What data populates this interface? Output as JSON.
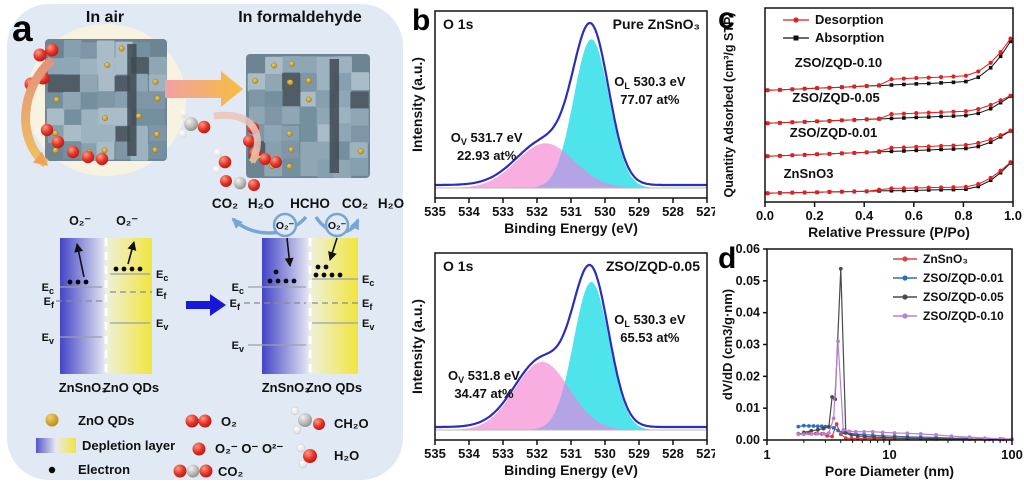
{
  "panels": {
    "a": "a",
    "b": "b",
    "c": "c",
    "d": "d"
  },
  "panel_a": {
    "scene_titles": {
      "air": "In air",
      "formaldehyde": "In formaldehyde"
    },
    "reaction_tokens": [
      "CO₂",
      "H₂O",
      "HCHO",
      "CO₂",
      "H₂O"
    ],
    "arc_labels": [
      "O₂⁻",
      "O₂⁻"
    ],
    "superoxide_labels": [
      "O₂⁻",
      "O₂⁻"
    ],
    "energy": {
      "base": "E",
      "c": "c",
      "f": "f",
      "v": "v"
    },
    "band_left": {
      "materials": [
        "ZnSnO₃",
        "ZnO QDs"
      ]
    },
    "band_right": {
      "materials": [
        "ZnSnO₃",
        "ZnO QDs"
      ]
    },
    "legend": [
      {
        "marker": "zno-qd",
        "label": "ZnO QDs"
      },
      {
        "marker": "depletion-layer",
        "label": "Depletion layer"
      },
      {
        "marker": "electron",
        "label": "Electron"
      },
      {
        "marker": "o2-molecule",
        "label": "O₂"
      },
      {
        "marker": "oxygen-ions",
        "label": "O₂⁻ O⁻ O²⁻"
      },
      {
        "marker": "co2-molecule",
        "label": "CO₂"
      },
      {
        "marker": "ch2o-molecule",
        "label": "CH₂O"
      },
      {
        "marker": "h2o-molecule",
        "label": "H₂O"
      }
    ],
    "colors": {
      "panel_bg": "#e1eaf4",
      "oxygen_red": "#d42a1e",
      "zno_gold": "#c99b2d",
      "depletion_blue": "#4444c8",
      "depletion_yellow": "#f0e53c"
    }
  },
  "chart_data": [
    {
      "id": "xps_pure_znsno3",
      "type": "area",
      "render": "xps",
      "title_left": "O 1s",
      "title_right": "Pure ZnSnO₃",
      "xlabel": "Binding Energy (eV)",
      "ylabel": "Intensity (a.u.)",
      "xlim": [
        535,
        527
      ],
      "x_ticks": [
        535,
        534,
        533,
        532,
        531,
        530,
        529,
        528,
        527
      ],
      "envelope_color": "#2b2fb8",
      "overlap_fill": "#b4a4e6",
      "peaks": [
        {
          "name": "OL",
          "species": "O",
          "sub": "L",
          "energy_label": "530.3 eV",
          "atom_pct": "77.07 at%",
          "center_ev": 530.4,
          "sigma_ev": 0.52,
          "rel_amp": 1.0,
          "fill": "#4fe3ec",
          "anno_x": 0.79,
          "anno_y": 0.4
        },
        {
          "name": "OV",
          "species": "O",
          "sub": "V",
          "energy_label": "531.7 eV",
          "atom_pct": "22.93 at%",
          "center_ev": 531.75,
          "sigma_ev": 0.85,
          "rel_amp": 0.3,
          "fill": "#f9aee2",
          "anno_x": 0.19,
          "anno_y": 0.7
        }
      ]
    },
    {
      "id": "xps_zso_zqd_005",
      "type": "area",
      "render": "xps",
      "title_left": "O 1s",
      "title_right": "ZSO/ZQD-0.05",
      "xlabel": "Binding Energy (eV)",
      "ylabel": "Intensity (a.u.)",
      "xlim": [
        535,
        527
      ],
      "x_ticks": [
        535,
        534,
        533,
        532,
        531,
        530,
        529,
        528,
        527
      ],
      "envelope_color": "#2b2fb8",
      "overlap_fill": "#b4a4e6",
      "peaks": [
        {
          "name": "OL",
          "species": "O",
          "sub": "L",
          "energy_label": "530.3 eV",
          "atom_pct": "65.53 at%",
          "center_ev": 530.4,
          "sigma_ev": 0.52,
          "rel_amp": 1.0,
          "fill": "#4fe3ec",
          "anno_x": 0.79,
          "anno_y": 0.38
        },
        {
          "name": "OV",
          "species": "O",
          "sub": "V",
          "energy_label": "531.8 eV",
          "atom_pct": "34.47 at%",
          "center_ev": 531.85,
          "sigma_ev": 0.8,
          "rel_amp": 0.46,
          "fill": "#f9aee2",
          "anno_x": 0.18,
          "anno_y": 0.68
        }
      ]
    },
    {
      "id": "n2_adsorption_isotherms",
      "type": "line",
      "render": "isotherm",
      "xlabel": "Relative Pressure (P/Po)",
      "ylabel": "Quantity Adsorbed (cm³/g STP)",
      "x_ticks": [
        0.0,
        0.2,
        0.4,
        0.6,
        0.8,
        1.0
      ],
      "legend": [
        {
          "label": "Desorption",
          "color": "#e01f1f",
          "marker": "circle"
        },
        {
          "label": "Absorption",
          "color": "#101010",
          "marker": "square"
        }
      ],
      "relative_pressure": [
        0.01,
        0.06,
        0.11,
        0.16,
        0.21,
        0.26,
        0.31,
        0.36,
        0.41,
        0.46,
        0.51,
        0.56,
        0.61,
        0.66,
        0.71,
        0.76,
        0.81,
        0.86,
        0.91,
        0.95,
        0.99
      ],
      "series": [
        {
          "name": "ZSO/ZQD-0.10",
          "label_x": 0.12,
          "label_y": 0.695,
          "adsorption_frac": [
            0.576,
            0.578,
            0.581,
            0.584,
            0.587,
            0.589,
            0.592,
            0.595,
            0.598,
            0.6,
            0.603,
            0.606,
            0.609,
            0.611,
            0.614,
            0.617,
            0.621,
            0.643,
            0.692,
            0.751,
            0.828
          ],
          "desorption_frac": [
            0.576,
            0.578,
            0.581,
            0.584,
            0.587,
            0.589,
            0.592,
            0.595,
            0.598,
            0.602,
            0.633,
            0.636,
            0.639,
            0.641,
            0.644,
            0.647,
            0.651,
            0.673,
            0.718,
            0.772,
            0.842
          ]
        },
        {
          "name": "ZSO/ZQD-0.05",
          "label_x": 0.11,
          "label_y": 0.515,
          "adsorption_frac": [
            0.406,
            0.408,
            0.411,
            0.413,
            0.416,
            0.418,
            0.421,
            0.423,
            0.426,
            0.428,
            0.431,
            0.433,
            0.436,
            0.438,
            0.441,
            0.443,
            0.446,
            0.457,
            0.481,
            0.512,
            0.545
          ],
          "desorption_frac": [
            0.406,
            0.408,
            0.411,
            0.413,
            0.416,
            0.418,
            0.421,
            0.423,
            0.426,
            0.43,
            0.453,
            0.455,
            0.458,
            0.46,
            0.463,
            0.465,
            0.468,
            0.479,
            0.5,
            0.524,
            0.548
          ]
        },
        {
          "name": "ZSO/ZQD-0.01",
          "label_x": 0.1,
          "label_y": 0.335,
          "adsorption_frac": [
            0.236,
            0.238,
            0.241,
            0.243,
            0.246,
            0.248,
            0.251,
            0.253,
            0.256,
            0.258,
            0.261,
            0.263,
            0.266,
            0.268,
            0.271,
            0.273,
            0.276,
            0.286,
            0.308,
            0.336,
            0.366
          ],
          "desorption_frac": [
            0.236,
            0.238,
            0.241,
            0.243,
            0.246,
            0.248,
            0.251,
            0.253,
            0.256,
            0.262,
            0.279,
            0.281,
            0.284,
            0.286,
            0.289,
            0.291,
            0.294,
            0.304,
            0.323,
            0.344,
            0.368
          ]
        },
        {
          "name": "ZnSnO3",
          "label_x": 0.075,
          "label_y": 0.125,
          "adsorption_frac": [
            0.045,
            0.047,
            0.048,
            0.049,
            0.05,
            0.052,
            0.053,
            0.054,
            0.055,
            0.057,
            0.058,
            0.059,
            0.06,
            0.062,
            0.063,
            0.064,
            0.066,
            0.08,
            0.112,
            0.151,
            0.201
          ],
          "desorption_frac": [
            0.045,
            0.047,
            0.048,
            0.049,
            0.05,
            0.052,
            0.053,
            0.054,
            0.055,
            0.063,
            0.07,
            0.071,
            0.072,
            0.074,
            0.075,
            0.076,
            0.078,
            0.092,
            0.124,
            0.161,
            0.205
          ]
        }
      ]
    },
    {
      "id": "pore_size_distribution",
      "type": "line",
      "render": "psd",
      "xlabel": "Pore Diameter (nm)",
      "ylabel": "dV/dD (cm3/g·nm)",
      "xscale": "log",
      "xlim": [
        1,
        100
      ],
      "ylim": [
        0,
        0.06
      ],
      "y_ticks": [
        0.0,
        0.01,
        0.02,
        0.03,
        0.04,
        0.05,
        0.06
      ],
      "x_ticks": [
        1,
        10,
        100
      ],
      "series": [
        {
          "name": "ZnSnO₃",
          "color": "#d84444",
          "x": [
            1.8,
            2.0,
            2.2,
            2.5,
            2.8,
            3.1,
            3.4,
            3.7,
            4.0,
            4.4,
            4.9,
            5.5,
            6.3,
            7.5,
            9,
            11,
            14,
            18,
            24,
            32,
            45,
            65,
            85,
            100
          ],
          "y": [
            0.002,
            0.0021,
            0.0021,
            0.002,
            0.0019,
            0.0013,
            0.0011,
            0.005,
            0.0018,
            0.0006,
            0.0005,
            0.0005,
            0.0005,
            0.0005,
            0.0004,
            0.0004,
            0.0004,
            0.0004,
            0.0003,
            0.0003,
            0.0003,
            0.0002,
            0.0002,
            0.0002
          ]
        },
        {
          "name": "ZSO/ZQD-0.01",
          "color": "#2e6fc0",
          "x": [
            1.8,
            2.0,
            2.2,
            2.4,
            2.6,
            2.8,
            3.0,
            3.2,
            3.5,
            3.8,
            4.2,
            4.7,
            5.3,
            6.2,
            7.3,
            8.8,
            11,
            14,
            18,
            24,
            32,
            45
          ],
          "y": [
            0.0042,
            0.0045,
            0.0044,
            0.0044,
            0.0043,
            0.0043,
            0.0042,
            0.0041,
            0.0038,
            0.003,
            0.0024,
            0.0021,
            0.0019,
            0.0017,
            0.0015,
            0.0013,
            0.0012,
            0.001,
            0.0009,
            0.0008,
            0.0006,
            0.0005
          ]
        },
        {
          "name": "ZSO/ZQD-0.05",
          "color": "#4a4a4a",
          "x": [
            2.0,
            2.3,
            2.6,
            2.9,
            3.2,
            3.4,
            3.6,
            4.0,
            4.4,
            4.9,
            5.5,
            6.3,
            7.5,
            9,
            11,
            14,
            18,
            24,
            32,
            45,
            60,
            80
          ],
          "y": [
            0.0024,
            0.0029,
            0.0032,
            0.0036,
            0.0042,
            0.0135,
            0.0128,
            0.0538,
            0.0022,
            0.0016,
            0.0013,
            0.0011,
            0.0009,
            0.0008,
            0.0007,
            0.0006,
            0.0005,
            0.0004,
            0.0004,
            0.0003,
            0.0002,
            0.0002
          ]
        },
        {
          "name": "ZSO/ZQD-0.10",
          "color": "#b77fd6",
          "x": [
            1.8,
            2.0,
            2.3,
            2.6,
            2.9,
            3.2,
            3.5,
            3.8,
            4.2,
            4.7,
            5.3,
            6.2,
            7.3,
            8.8,
            11,
            14,
            18,
            24,
            32,
            45,
            60,
            80,
            100
          ],
          "y": [
            0.0018,
            0.0018,
            0.0019,
            0.002,
            0.002,
            0.0022,
            0.0068,
            0.031,
            0.0032,
            0.0027,
            0.0026,
            0.0026,
            0.0026,
            0.0024,
            0.0022,
            0.0021,
            0.0019,
            0.0016,
            0.0012,
            0.0009,
            0.0006,
            0.0004,
            0.0003
          ]
        }
      ]
    }
  ]
}
